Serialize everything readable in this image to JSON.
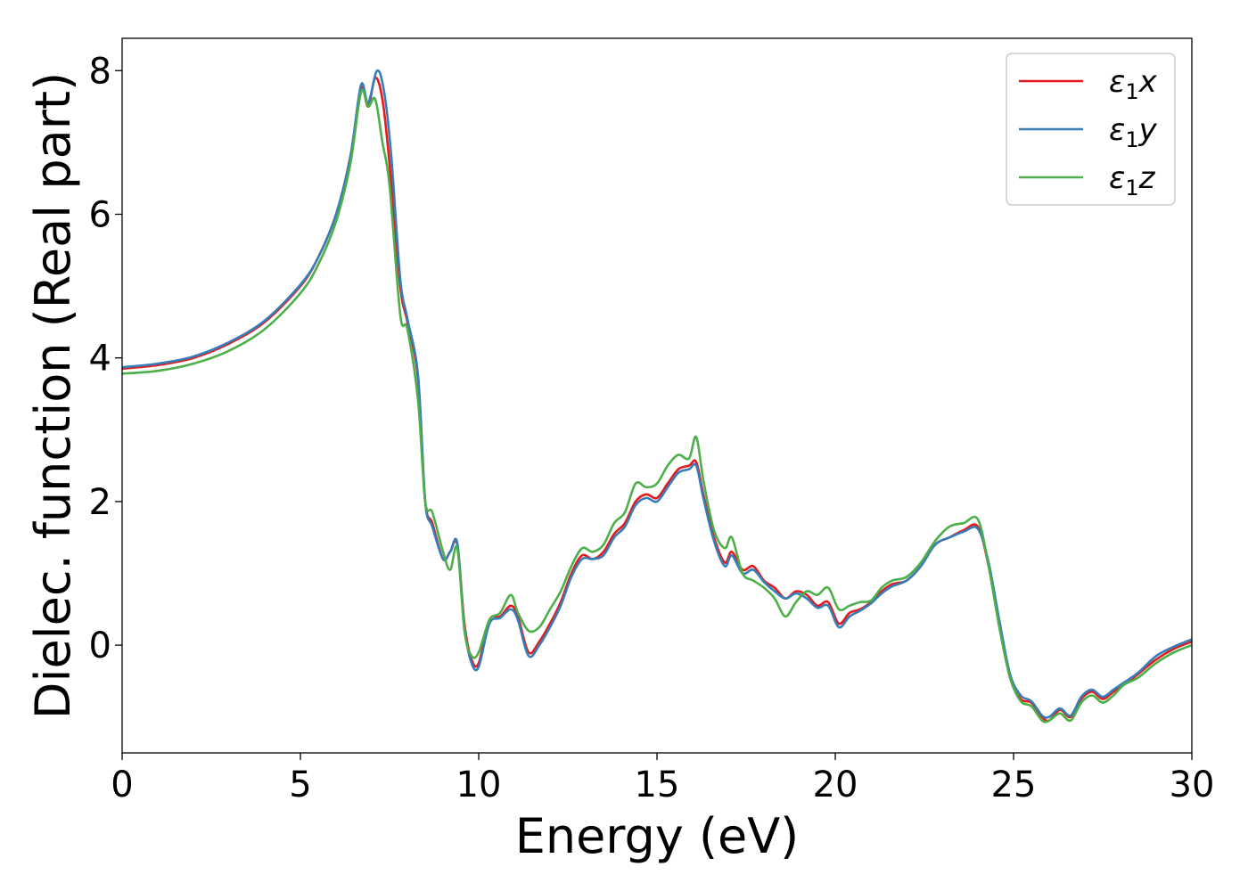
{
  "chart_data": {
    "type": "line",
    "title": "",
    "xlabel": "Energy (eV)",
    "ylabel": "Dielec. function (Real part)",
    "xlim": [
      0,
      30
    ],
    "ylim": [
      -1.5,
      8.45
    ],
    "xticks": [
      0,
      5,
      10,
      15,
      20,
      25,
      30
    ],
    "yticks": [
      0,
      2,
      4,
      6,
      8
    ],
    "grid": false,
    "legend_position": "top-right",
    "series": [
      {
        "name": "ε₁x",
        "legend": {
          "sym": "ε",
          "sub": "1",
          "axis": "x"
        },
        "color": "#e41a1c",
        "x": [
          0,
          1,
          2,
          3,
          4,
          5,
          5.5,
          6,
          6.4,
          6.7,
          6.9,
          7.1,
          7.3,
          7.5,
          7.8,
          8.0,
          8.3,
          8.5,
          8.7,
          9.0,
          9.2,
          9.4,
          9.6,
          9.8,
          10.0,
          10.3,
          10.6,
          10.9,
          11.1,
          11.4,
          11.7,
          12.0,
          12.3,
          12.6,
          12.9,
          13.2,
          13.5,
          13.8,
          14.1,
          14.4,
          14.7,
          15.0,
          15.3,
          15.6,
          15.9,
          16.1,
          16.3,
          16.6,
          16.9,
          17.1,
          17.4,
          17.7,
          18.0,
          18.3,
          18.6,
          18.9,
          19.2,
          19.5,
          19.8,
          20.1,
          20.4,
          20.7,
          21.0,
          21.3,
          21.6,
          22.0,
          22.4,
          22.8,
          23.2,
          23.6,
          24.0,
          24.3,
          24.6,
          24.9,
          25.2,
          25.5,
          25.8,
          26.0,
          26.3,
          26.6,
          26.9,
          27.2,
          27.5,
          27.8,
          28.1,
          28.5,
          29.0,
          29.5,
          30.0
        ],
        "y": [
          3.85,
          3.9,
          4.0,
          4.2,
          4.5,
          5.0,
          5.4,
          6.0,
          6.8,
          7.75,
          7.5,
          7.9,
          7.6,
          6.7,
          5.0,
          4.5,
          3.7,
          2.0,
          1.7,
          1.2,
          1.3,
          1.4,
          0.3,
          -0.2,
          -0.25,
          0.35,
          0.4,
          0.55,
          0.4,
          -0.1,
          0.05,
          0.3,
          0.6,
          1.0,
          1.25,
          1.2,
          1.3,
          1.55,
          1.7,
          2.0,
          2.1,
          2.05,
          2.25,
          2.45,
          2.5,
          2.55,
          2.1,
          1.5,
          1.15,
          1.3,
          1.05,
          1.1,
          0.9,
          0.8,
          0.65,
          0.75,
          0.7,
          0.55,
          0.6,
          0.3,
          0.45,
          0.5,
          0.6,
          0.75,
          0.85,
          0.9,
          1.1,
          1.4,
          1.5,
          1.6,
          1.65,
          1.1,
          0.3,
          -0.45,
          -0.75,
          -0.8,
          -1.0,
          -1.05,
          -0.9,
          -1.0,
          -0.75,
          -0.65,
          -0.75,
          -0.65,
          -0.55,
          -0.4,
          -0.2,
          -0.05,
          0.05
        ]
      },
      {
        "name": "ε₁y",
        "legend": {
          "sym": "ε",
          "sub": "1",
          "axis": "y"
        },
        "color": "#377eb8",
        "x": [
          0,
          1,
          2,
          3,
          4,
          5,
          5.5,
          6,
          6.4,
          6.7,
          6.9,
          7.15,
          7.35,
          7.55,
          7.8,
          8.0,
          8.3,
          8.5,
          8.7,
          9.0,
          9.2,
          9.4,
          9.6,
          9.8,
          10.0,
          10.3,
          10.6,
          10.9,
          11.1,
          11.4,
          11.7,
          12.0,
          12.3,
          12.6,
          12.9,
          13.2,
          13.5,
          13.8,
          14.1,
          14.4,
          14.7,
          15.0,
          15.3,
          15.6,
          15.9,
          16.1,
          16.3,
          16.6,
          16.9,
          17.1,
          17.4,
          17.7,
          18.0,
          18.3,
          18.6,
          18.9,
          19.2,
          19.5,
          19.8,
          20.1,
          20.4,
          20.7,
          21.0,
          21.3,
          21.6,
          22.0,
          22.4,
          22.8,
          23.2,
          23.6,
          24.0,
          24.3,
          24.6,
          24.9,
          25.2,
          25.5,
          25.8,
          26.0,
          26.3,
          26.6,
          26.9,
          27.2,
          27.5,
          27.8,
          28.1,
          28.5,
          29.0,
          29.5,
          30.0
        ],
        "y": [
          3.87,
          3.92,
          4.02,
          4.22,
          4.52,
          5.02,
          5.4,
          6.0,
          6.8,
          7.8,
          7.55,
          8.0,
          7.7,
          6.8,
          5.1,
          4.55,
          3.75,
          2.0,
          1.65,
          1.2,
          1.3,
          1.42,
          0.25,
          -0.25,
          -0.3,
          0.3,
          0.38,
          0.5,
          0.35,
          -0.15,
          0.0,
          0.25,
          0.55,
          0.95,
          1.2,
          1.2,
          1.25,
          1.5,
          1.65,
          1.95,
          2.05,
          2.0,
          2.2,
          2.4,
          2.45,
          2.5,
          2.05,
          1.45,
          1.1,
          1.25,
          1.0,
          1.05,
          0.88,
          0.75,
          0.65,
          0.72,
          0.65,
          0.52,
          0.55,
          0.25,
          0.4,
          0.48,
          0.58,
          0.72,
          0.82,
          0.9,
          1.1,
          1.4,
          1.5,
          1.58,
          1.62,
          1.15,
          0.35,
          -0.4,
          -0.7,
          -0.78,
          -0.98,
          -1.0,
          -0.88,
          -0.98,
          -0.72,
          -0.62,
          -0.72,
          -0.62,
          -0.52,
          -0.38,
          -0.15,
          -0.02,
          0.08
        ]
      },
      {
        "name": "ε₁z",
        "legend": {
          "sym": "ε",
          "sub": "1",
          "axis": "z"
        },
        "color": "#4daf4a",
        "x": [
          0,
          1,
          2,
          3,
          4,
          5,
          5.5,
          6,
          6.4,
          6.7,
          6.9,
          7.1,
          7.3,
          7.5,
          7.8,
          8.0,
          8.3,
          8.5,
          8.7,
          9.0,
          9.2,
          9.4,
          9.6,
          9.8,
          10.0,
          10.3,
          10.6,
          10.9,
          11.1,
          11.4,
          11.7,
          12.0,
          12.3,
          12.6,
          12.9,
          13.2,
          13.5,
          13.8,
          14.1,
          14.4,
          14.7,
          15.0,
          15.3,
          15.6,
          15.9,
          16.1,
          16.3,
          16.6,
          16.9,
          17.1,
          17.4,
          17.7,
          18.0,
          18.3,
          18.6,
          18.9,
          19.2,
          19.5,
          19.8,
          20.1,
          20.4,
          20.7,
          21.0,
          21.3,
          21.6,
          22.0,
          22.4,
          22.8,
          23.2,
          23.6,
          24.0,
          24.3,
          24.6,
          24.9,
          25.2,
          25.5,
          25.8,
          26.0,
          26.3,
          26.6,
          26.9,
          27.2,
          27.5,
          27.8,
          28.1,
          28.5,
          29.0,
          29.5,
          30.0
        ],
        "y": [
          3.78,
          3.82,
          3.92,
          4.1,
          4.4,
          4.9,
          5.3,
          5.9,
          6.7,
          7.7,
          7.5,
          7.6,
          7.0,
          6.4,
          4.6,
          4.4,
          3.4,
          2.0,
          1.85,
          1.3,
          1.05,
          1.35,
          0.2,
          -0.15,
          -0.1,
          0.35,
          0.45,
          0.7,
          0.45,
          0.2,
          0.25,
          0.5,
          0.75,
          1.1,
          1.35,
          1.3,
          1.4,
          1.7,
          1.85,
          2.25,
          2.2,
          2.25,
          2.5,
          2.65,
          2.6,
          2.9,
          2.3,
          1.6,
          1.35,
          1.5,
          1.0,
          0.9,
          0.8,
          0.65,
          0.4,
          0.6,
          0.75,
          0.7,
          0.8,
          0.5,
          0.55,
          0.6,
          0.62,
          0.8,
          0.9,
          0.95,
          1.15,
          1.45,
          1.65,
          1.7,
          1.75,
          1.1,
          0.25,
          -0.45,
          -0.78,
          -0.85,
          -1.05,
          -1.05,
          -0.95,
          -1.05,
          -0.8,
          -0.7,
          -0.8,
          -0.7,
          -0.55,
          -0.45,
          -0.25,
          -0.1,
          0.0
        ]
      }
    ]
  }
}
